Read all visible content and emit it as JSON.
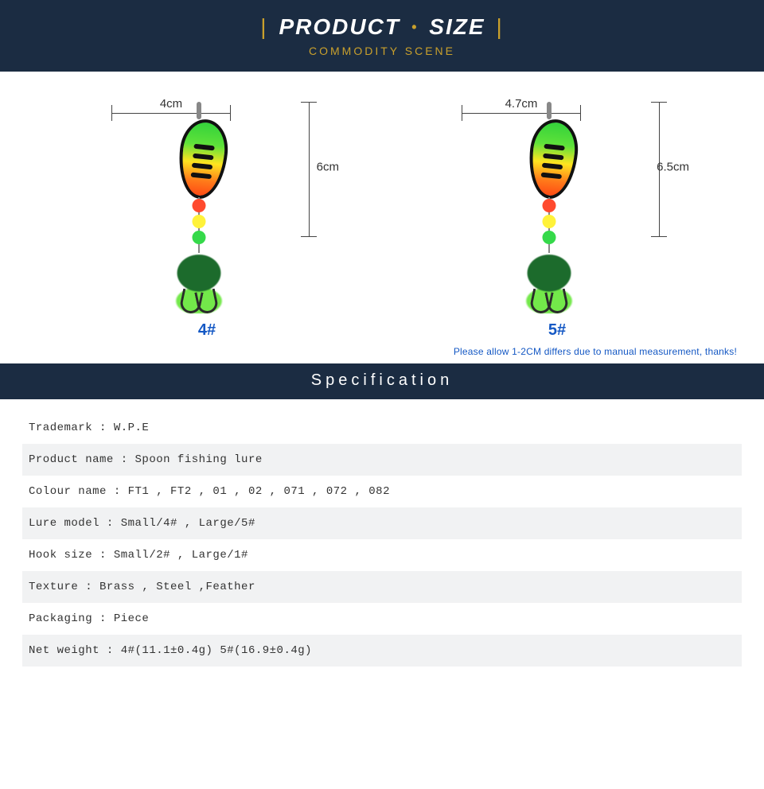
{
  "banner": {
    "title_left": "PRODUCT",
    "title_right": "SIZE",
    "subtitle": "COMMODITY SCENE",
    "bg_color": "#1b2c42",
    "title_color": "#ffffff",
    "accent_color": "#c9a02c",
    "title_fontsize": 28,
    "subtitle_fontsize": 14
  },
  "figures": {
    "items": [
      {
        "label": "4#",
        "width_dim": "4cm",
        "height_dim": "6cm"
      },
      {
        "label": "5#",
        "width_dim": "4.7cm",
        "height_dim": "6.5cm"
      }
    ],
    "label_color": "#1458c4",
    "label_fontsize": 20,
    "dim_fontsize": 15,
    "lure_colors": {
      "blade_gradient": [
        "#34d23b",
        "#5ee23a",
        "#ffe420",
        "#ff7a1a",
        "#ff4a14"
      ],
      "blade_border": "#111111",
      "beads": [
        "#ff4a2e",
        "#fff23a",
        "#35d94a"
      ],
      "feather_dark": "#1c6b2c",
      "feather_light": "#73e84a",
      "hook": "#2b2b2b"
    }
  },
  "measure_note": "Please allow 1-2CM differs due to manual measurement, thanks!",
  "measure_note_color": "#1458c4",
  "spec_header": "Specification",
  "spec_header_bg": "#1b2c42",
  "spec_rows": [
    "Trademark : W.P.E",
    "Product name : Spoon fishing lure",
    "Colour name : FT1 , FT2 , 01 , 02 , 071 , 072 , 082",
    "Lure model : Small/4# , Large/5#",
    "Hook size : Small/2# , Large/1#",
    "Texture : Brass , Steel ,Feather",
    "Packaging : Piece",
    "Net weight : 4#(11.1±0.4g)   5#(16.9±0.4g)"
  ],
  "spec_row_alt_bg": "#f1f2f3",
  "spec_font": "Courier New",
  "spec_fontsize": 14
}
